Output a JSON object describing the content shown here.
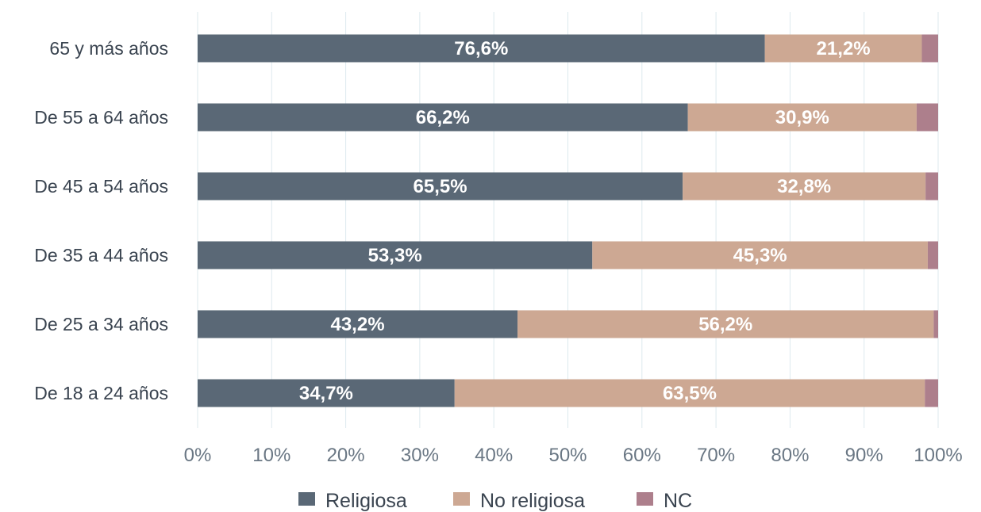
{
  "colors": {
    "religiosa": "#5a6876",
    "no_religiosa": "#cda893",
    "nc": "#ad7f8c",
    "grid": "#dde9ee"
  },
  "chart_data": {
    "type": "bar",
    "orientation": "horizontal",
    "stacked": true,
    "categories": [
      "65 y más años",
      "De 55 a 64 años",
      "De 45 a 54 años",
      "De 35 a 44 años",
      "De 25 a 34 años",
      "De 18 a 24 años"
    ],
    "series": [
      {
        "name": "Religiosa",
        "values": [
          76.6,
          66.2,
          65.5,
          53.3,
          43.2,
          34.7
        ],
        "labels": [
          "76,6%",
          "66,2%",
          "65,5%",
          "53,3%",
          "43,2%",
          "34,7%"
        ]
      },
      {
        "name": "No religiosa",
        "values": [
          21.2,
          30.9,
          32.8,
          45.3,
          56.2,
          63.5
        ],
        "labels": [
          "21,2%",
          "30,9%",
          "32,8%",
          "45,3%",
          "56,2%",
          "63,5%"
        ]
      },
      {
        "name": "NC",
        "values": [
          2.2,
          2.9,
          1.7,
          1.4,
          0.6,
          1.8
        ],
        "labels": []
      }
    ],
    "xlim": [
      0,
      100
    ],
    "xticks": [
      "0%",
      "10%",
      "20%",
      "30%",
      "40%",
      "50%",
      "60%",
      "70%",
      "80%",
      "90%",
      "100%"
    ],
    "grid": true,
    "legend": "bottom"
  }
}
